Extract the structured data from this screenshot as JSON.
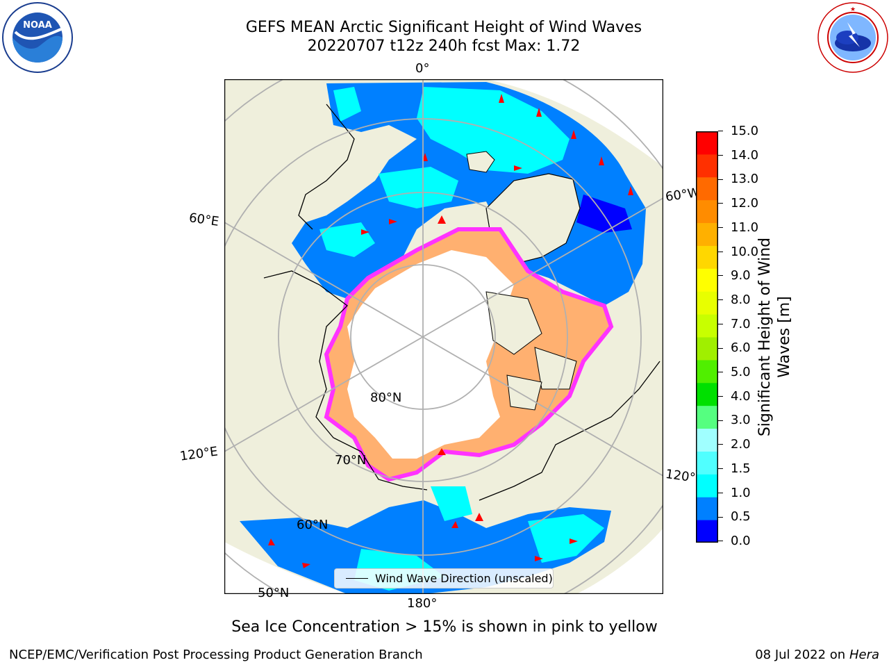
{
  "title": {
    "line1": "GEFS MEAN Arctic Significant Height of Wind Waves",
    "line2": "20220707 t12z 240h fcst   Max: 1.72"
  },
  "logos": {
    "left": "NOAA",
    "left_ring": "NATIONAL OCEANIC AND ATMOSPHERIC ADMINISTRATION · U.S. DEPARTMENT OF COMMERCE",
    "right_ring": "NATIONAL WEATHER SERVICE"
  },
  "map": {
    "longitude_labels": [
      "0°",
      "60°E",
      "60°W",
      "120°E",
      "120°W",
      "180°"
    ],
    "latitude_labels": [
      "80°N",
      "70°N",
      "60°N",
      "50°N"
    ],
    "legend": "Wind Wave Direction (unscaled)",
    "colors": {
      "land": "#efefdc",
      "ice": "#ffffff",
      "ocean_low": "#0080ff",
      "ocean_mid": "#00ffff",
      "ice_edge_pink": "#ff33ff",
      "ice_edge_orange": "#ffb070",
      "arrow": "#ff0000",
      "grid": "#b0b0b0"
    }
  },
  "colorbar": {
    "title": "Significant Height of Wind Waves [m]",
    "ticks": [
      "15.0",
      "14.0",
      "13.0",
      "12.0",
      "11.0",
      "10.0",
      "9.0",
      "8.0",
      "7.0",
      "6.0",
      "5.0",
      "4.0",
      "3.0",
      "2.0",
      "1.5",
      "1.0",
      "0.5",
      "0.0"
    ],
    "colors_bottom_to_top": [
      "#0000ff",
      "#0080ff",
      "#00ffff",
      "#50ffff",
      "#a0ffff",
      "#55ff80",
      "#00e000",
      "#50ef00",
      "#a0ef00",
      "#c8ff00",
      "#e8ff00",
      "#ffff00",
      "#ffd700",
      "#ffb000",
      "#ff8c00",
      "#ff6a00",
      "#ff3000",
      "#ff0000"
    ]
  },
  "caption": "Sea Ice Concentration > 15% is shown in pink to yellow",
  "footer": {
    "left": "NCEP/EMC/Verification Post Processing Product Generation Branch",
    "right_prefix": "08 Jul 2022 on ",
    "right_host": "Hera"
  }
}
